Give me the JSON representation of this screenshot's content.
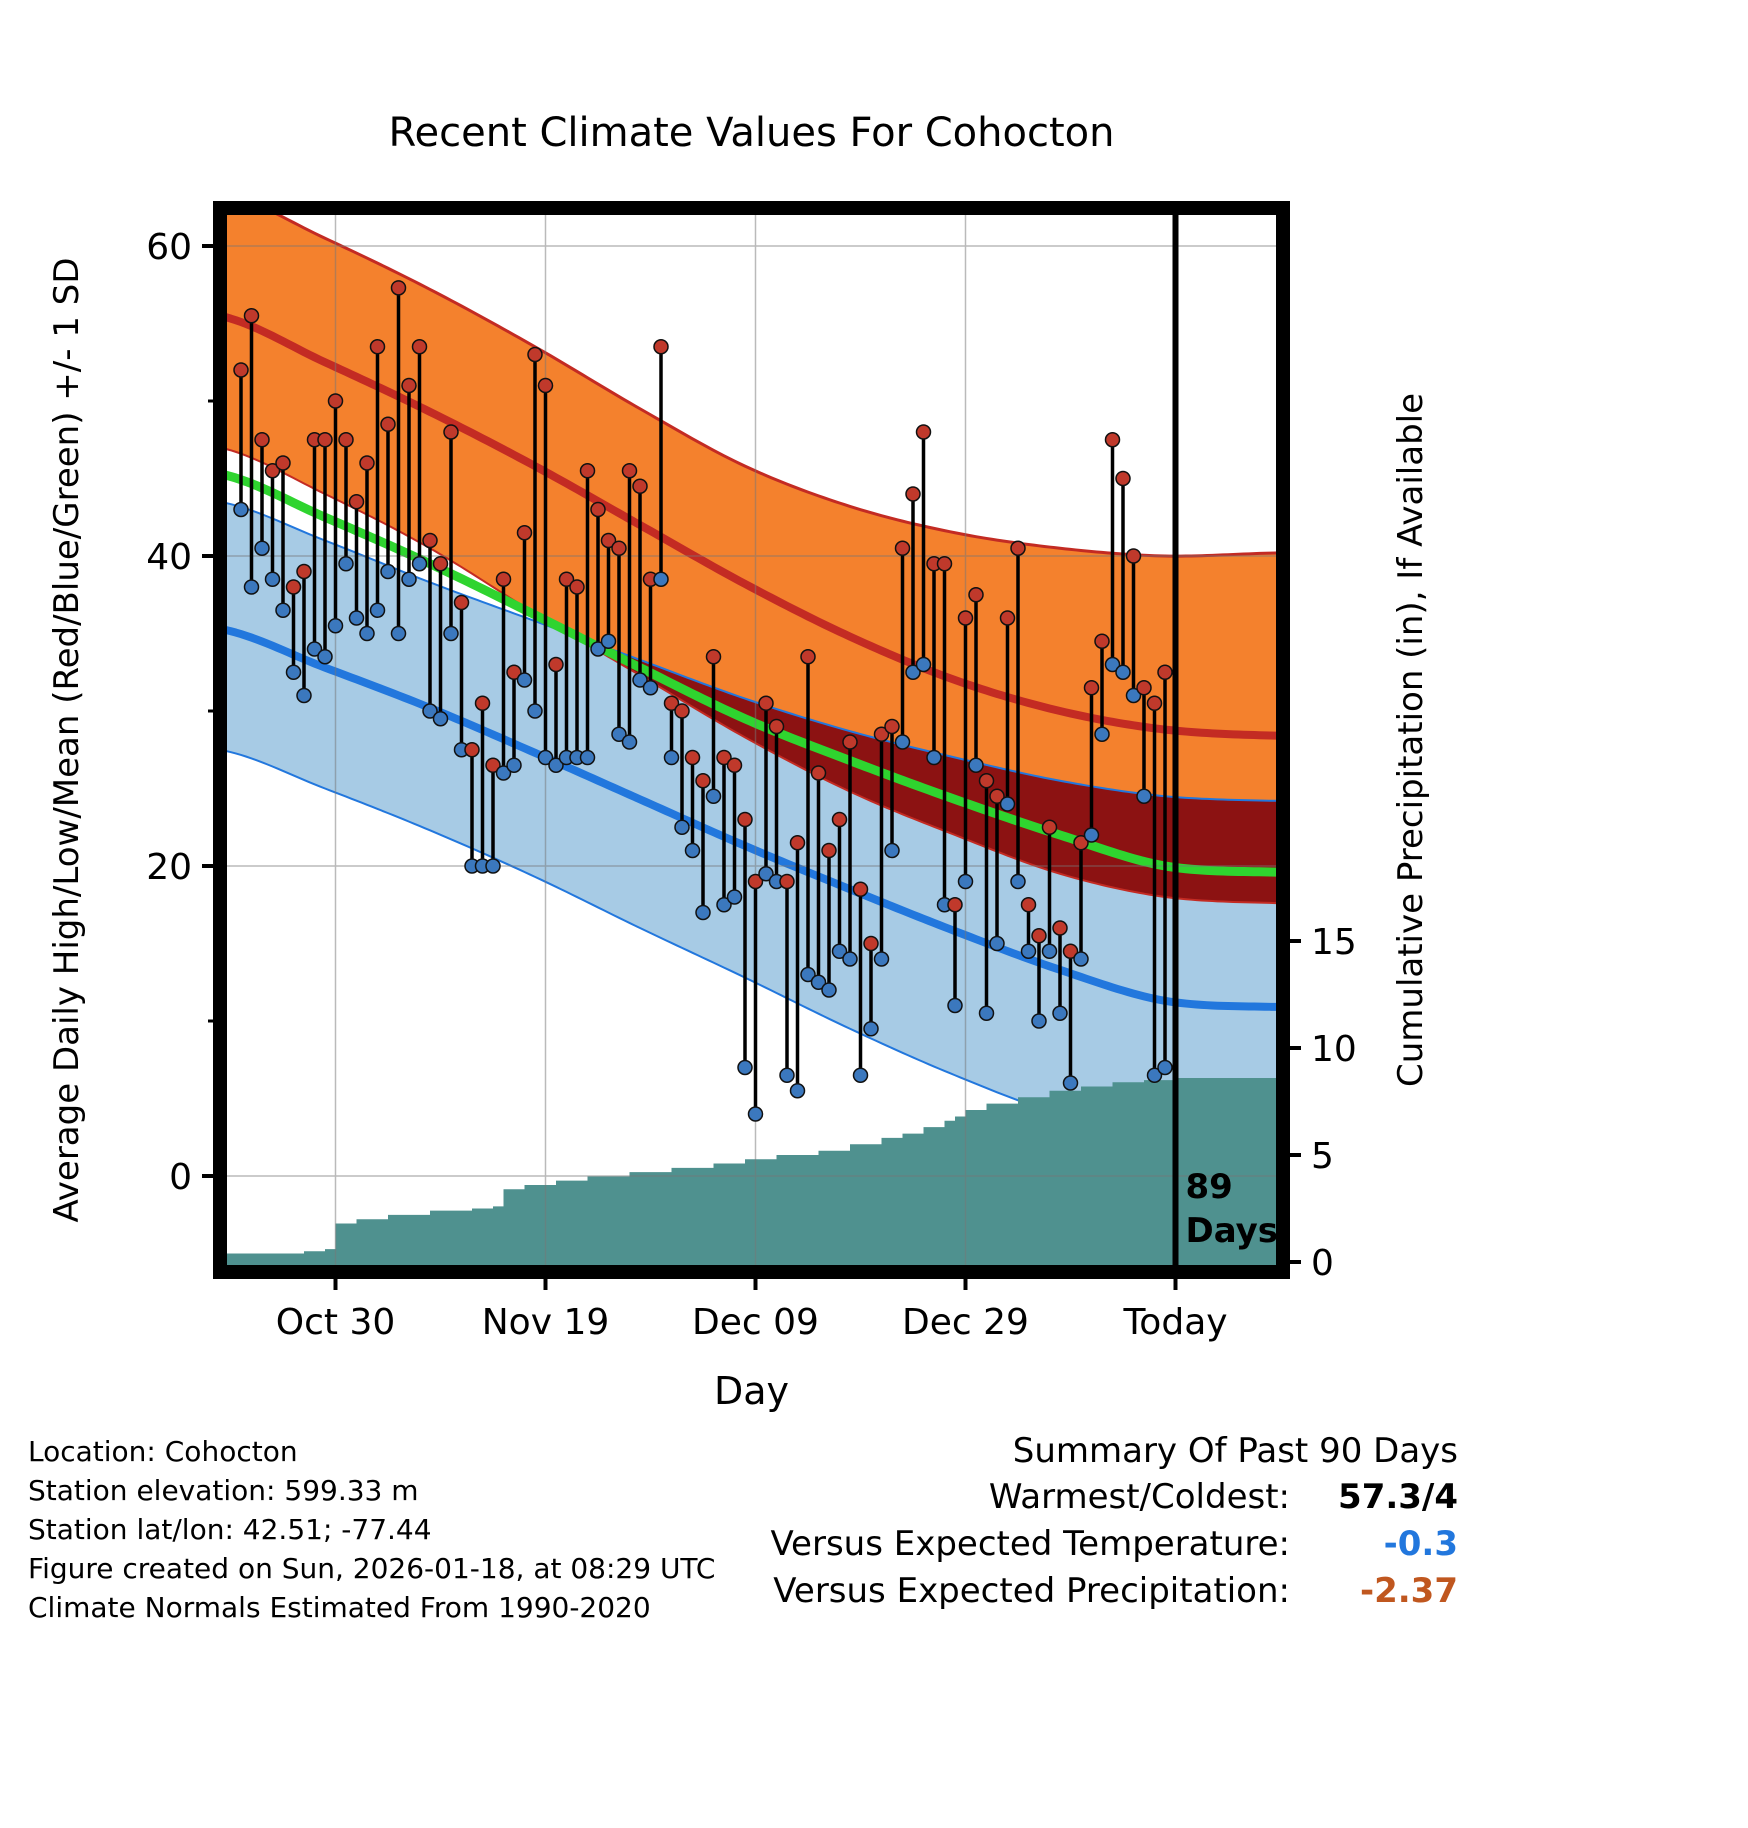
{
  "footer": {
    "lines": [
      "Location: Cohocton",
      "Station elevation: 599.33 m",
      "Station lat/lon: 42.51; -77.44",
      "Figure created on Sun, 2026-01-18, at 08:29 UTC",
      "Climate Normals Estimated From 1990-2020"
    ]
  },
  "summary": {
    "heading": "Summary Of Past 90 Days",
    "rows": [
      {
        "label": "Warmest/Coldest:",
        "value": "57.3/4",
        "color": "#000000"
      },
      {
        "label": "Versus Expected Temperature:",
        "value": "-0.3",
        "color": "#2277dd"
      },
      {
        "label": "Versus Expected Precipitation:",
        "value": "-2.37",
        "color": "#c0571f"
      }
    ]
  },
  "chart_data": {
    "type": "line",
    "title": "Recent Climate Values For Cohocton",
    "xlabel": "Day",
    "ylabel_left": "Average Daily High/Low/Mean (Red/Blue/Green) +/- 1 SD",
    "ylabel_right": "Cumulative Precipitation (in), If Available",
    "x_ticks": [
      {
        "day": 9,
        "label": "Oct 30"
      },
      {
        "day": 29,
        "label": "Nov 19"
      },
      {
        "day": 49,
        "label": "Dec 09"
      },
      {
        "day": 69,
        "label": "Dec 29"
      },
      {
        "day": 89,
        "label": "Today"
      }
    ],
    "y_left_ticks": [
      0,
      20,
      40,
      60
    ],
    "y_left_minor": [
      10,
      30,
      50
    ],
    "y_left_range": [
      -6.2,
      62.5
    ],
    "y_right_ticks": [
      0,
      5,
      10,
      15
    ],
    "x_range_days": [
      -2,
      99
    ],
    "today_day": 89,
    "today_annotation": {
      "line1": "89",
      "line2": "Days"
    },
    "normals": {
      "days": [
        -2,
        8,
        18,
        28,
        38,
        48,
        58,
        68,
        78,
        88,
        99
      ],
      "high_upper": [
        63.5,
        60.5,
        57.2,
        53.5,
        49.5,
        45.8,
        43.2,
        41.5,
        40.5,
        40.0,
        40.2
      ],
      "high_mean": [
        55.5,
        52.5,
        49.3,
        45.8,
        42.0,
        38.2,
        34.8,
        32.0,
        30.0,
        28.8,
        28.4
      ],
      "high_lower": [
        47.0,
        44.0,
        40.5,
        36.3,
        32.3,
        28.3,
        24.8,
        22.0,
        19.5,
        18.0,
        17.6
      ],
      "mean": [
        45.3,
        42.5,
        39.5,
        36.2,
        32.8,
        29.5,
        26.8,
        24.3,
        22.0,
        20.0,
        19.6
      ],
      "low_upper": [
        43.5,
        41.0,
        38.3,
        35.8,
        33.3,
        30.8,
        28.7,
        27.0,
        25.5,
        24.5,
        24.2
      ],
      "low_mean": [
        35.3,
        32.8,
        30.2,
        27.3,
        24.3,
        21.3,
        18.5,
        15.8,
        13.3,
        11.3,
        10.9
      ],
      "low_lower": [
        27.5,
        25.0,
        22.3,
        19.3,
        16.0,
        12.8,
        9.5,
        6.5,
        4.0,
        2.8,
        2.5
      ]
    },
    "daily": {
      "start_day": 0,
      "high": [
        52,
        55.5,
        47.5,
        45.5,
        46,
        38,
        39,
        47.5,
        47.5,
        50,
        47.5,
        43.5,
        46,
        53.5,
        48.5,
        57.3,
        51,
        53.5,
        41,
        39.5,
        48,
        37,
        27.5,
        30.5,
        26.5,
        38.5,
        32.5,
        41.5,
        53,
        51,
        33,
        38.5,
        38,
        45.5,
        43,
        41,
        40.5,
        45.5,
        44.5,
        38.5,
        53.5,
        30.5,
        30,
        27,
        25.5,
        33.5,
        27,
        26.5,
        23,
        19,
        30.5,
        29,
        19,
        21.5,
        33.5,
        26,
        21,
        23,
        28,
        18.5,
        15,
        28.5,
        29,
        40.5,
        44,
        48,
        39.5,
        39.5,
        17.5,
        36,
        37.5,
        25.5,
        24.5,
        36,
        40.5,
        17.5,
        15.5,
        22.5,
        16,
        14.5,
        21.5,
        31.5,
        34.5,
        47.5,
        45,
        40,
        31.5,
        30.5,
        32.5
      ],
      "low": [
        43,
        38,
        40.5,
        38.5,
        36.5,
        32.5,
        31,
        34,
        33.5,
        35.5,
        39.5,
        36,
        35,
        36.5,
        39,
        35,
        38.5,
        39.5,
        30,
        29.5,
        35,
        27.5,
        20,
        20,
        20,
        26,
        26.5,
        32,
        30,
        27,
        26.5,
        27,
        27,
        27,
        34,
        34.5,
        28.5,
        28,
        32,
        31.5,
        38.5,
        27,
        22.5,
        21,
        17,
        24.5,
        17.5,
        18,
        7,
        4,
        19.5,
        19,
        6.5,
        5.5,
        13,
        12.5,
        12,
        14.5,
        14,
        6.5,
        9.5,
        14,
        21,
        28,
        32.5,
        33,
        27,
        17.5,
        11,
        19,
        26.5,
        10.5,
        15,
        24,
        19,
        14.5,
        10,
        14.5,
        10.5,
        6,
        14,
        22,
        28.5,
        33,
        32.5,
        31,
        24.5,
        6.5,
        7
      ]
    },
    "precip": {
      "days": [
        -2,
        6,
        8,
        9,
        11,
        14,
        18,
        22,
        24,
        25,
        27,
        30,
        33,
        37,
        41,
        45,
        48,
        51,
        55,
        58,
        61,
        63,
        65,
        67,
        68,
        69,
        71,
        74,
        77,
        80,
        83,
        86,
        89,
        99
      ],
      "values": [
        0.4,
        0.5,
        0.6,
        1.8,
        2.0,
        2.2,
        2.4,
        2.5,
        2.6,
        3.4,
        3.6,
        3.8,
        4.0,
        4.2,
        4.4,
        4.6,
        4.8,
        5.0,
        5.2,
        5.5,
        5.8,
        6.0,
        6.3,
        6.6,
        6.8,
        7.1,
        7.4,
        7.7,
        8.0,
        8.2,
        8.4,
        8.5,
        8.6,
        8.7
      ]
    },
    "colors": {
      "high_band": "#f4812d",
      "high_line": "#c32b23",
      "overlap_band": "#8c1212",
      "mean_line": "#2fd42f",
      "low_band": "#a7cbe5",
      "low_line": "#2277dd",
      "high_dot": "#c0392b",
      "low_dot": "#3b78be",
      "precip_fill": "#4f918f",
      "stem": "#000000",
      "grid": "#777777",
      "today_line": "#000000"
    }
  }
}
